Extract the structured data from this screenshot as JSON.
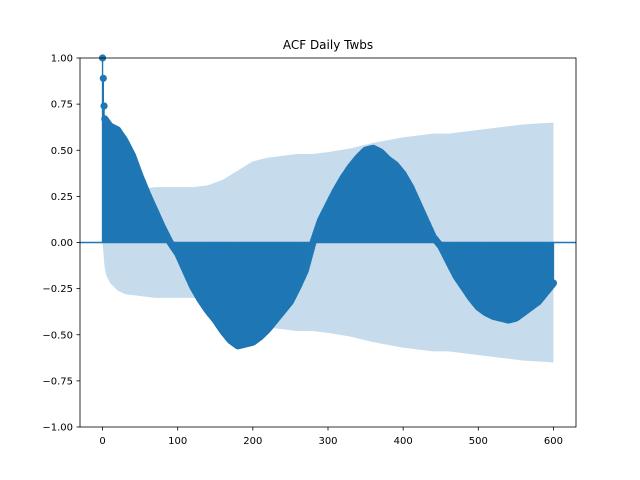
{
  "chart_data": {
    "type": "acf",
    "title": "ACF Daily Twbs",
    "xlabel": "",
    "ylabel": "",
    "xlim": [
      -30,
      630
    ],
    "ylim": [
      -1.0,
      1.0
    ],
    "xticks": [
      0,
      100,
      200,
      300,
      400,
      500,
      600
    ],
    "yticks": [
      -1.0,
      -0.75,
      -0.5,
      -0.25,
      0.0,
      0.25,
      0.5,
      0.75,
      1.0
    ],
    "ytick_labels": [
      "−1.00",
      "−0.75",
      "−0.50",
      "−0.25",
      "0.00",
      "0.25",
      "0.50",
      "0.75",
      "1.00"
    ],
    "max_lag": 600,
    "acf_anchors": [
      [
        0,
        1.0
      ],
      [
        1,
        0.89
      ],
      [
        2,
        0.74
      ],
      [
        3,
        0.67
      ],
      [
        10,
        0.63
      ],
      [
        20,
        0.61
      ],
      [
        30,
        0.55
      ],
      [
        40,
        0.47
      ],
      [
        50,
        0.36
      ],
      [
        60,
        0.26
      ],
      [
        70,
        0.17
      ],
      [
        80,
        0.08
      ],
      [
        90,
        0.0
      ],
      [
        100,
        -0.06
      ],
      [
        110,
        -0.15
      ],
      [
        120,
        -0.24
      ],
      [
        130,
        -0.31
      ],
      [
        140,
        -0.37
      ],
      [
        150,
        -0.42
      ],
      [
        160,
        -0.48
      ],
      [
        170,
        -0.53
      ],
      [
        180,
        -0.56
      ],
      [
        190,
        -0.55
      ],
      [
        200,
        -0.54
      ],
      [
        210,
        -0.51
      ],
      [
        220,
        -0.47
      ],
      [
        230,
        -0.42
      ],
      [
        240,
        -0.37
      ],
      [
        250,
        -0.32
      ],
      [
        260,
        -0.24
      ],
      [
        270,
        -0.15
      ],
      [
        280,
        0.0
      ],
      [
        290,
        0.12
      ],
      [
        300,
        0.2
      ],
      [
        310,
        0.28
      ],
      [
        320,
        0.35
      ],
      [
        330,
        0.41
      ],
      [
        340,
        0.46
      ],
      [
        350,
        0.5
      ],
      [
        360,
        0.51
      ],
      [
        370,
        0.49
      ],
      [
        380,
        0.45
      ],
      [
        390,
        0.42
      ],
      [
        400,
        0.37
      ],
      [
        410,
        0.3
      ],
      [
        420,
        0.21
      ],
      [
        430,
        0.12
      ],
      [
        440,
        0.03
      ],
      [
        450,
        -0.02
      ],
      [
        460,
        -0.1
      ],
      [
        470,
        -0.18
      ],
      [
        480,
        -0.24
      ],
      [
        490,
        -0.3
      ],
      [
        500,
        -0.35
      ],
      [
        510,
        -0.38
      ],
      [
        520,
        -0.4
      ],
      [
        530,
        -0.41
      ],
      [
        540,
        -0.42
      ],
      [
        550,
        -0.41
      ],
      [
        560,
        -0.38
      ],
      [
        570,
        -0.35
      ],
      [
        580,
        -0.32
      ],
      [
        590,
        -0.27
      ],
      [
        600,
        -0.22
      ]
    ],
    "confidence_band_anchors": [
      [
        0,
        0.0
      ],
      [
        1,
        0.05
      ],
      [
        2,
        0.1
      ],
      [
        3,
        0.14
      ],
      [
        5,
        0.18
      ],
      [
        10,
        0.22
      ],
      [
        20,
        0.26
      ],
      [
        30,
        0.28
      ],
      [
        50,
        0.29
      ],
      [
        70,
        0.3
      ],
      [
        100,
        0.3
      ],
      [
        120,
        0.3
      ],
      [
        140,
        0.31
      ],
      [
        160,
        0.34
      ],
      [
        180,
        0.39
      ],
      [
        200,
        0.44
      ],
      [
        220,
        0.46
      ],
      [
        240,
        0.47
      ],
      [
        260,
        0.48
      ],
      [
        280,
        0.48
      ],
      [
        300,
        0.49
      ],
      [
        330,
        0.51
      ],
      [
        360,
        0.54
      ],
      [
        400,
        0.57
      ],
      [
        440,
        0.59
      ],
      [
        460,
        0.59
      ],
      [
        480,
        0.6
      ],
      [
        520,
        0.62
      ],
      [
        560,
        0.64
      ],
      [
        600,
        0.65
      ]
    ],
    "colors": {
      "stem": "#1f77b4",
      "band": "#c6dbec",
      "zero_line": "#1f77b4",
      "axis": "#000000"
    },
    "grid": false
  }
}
